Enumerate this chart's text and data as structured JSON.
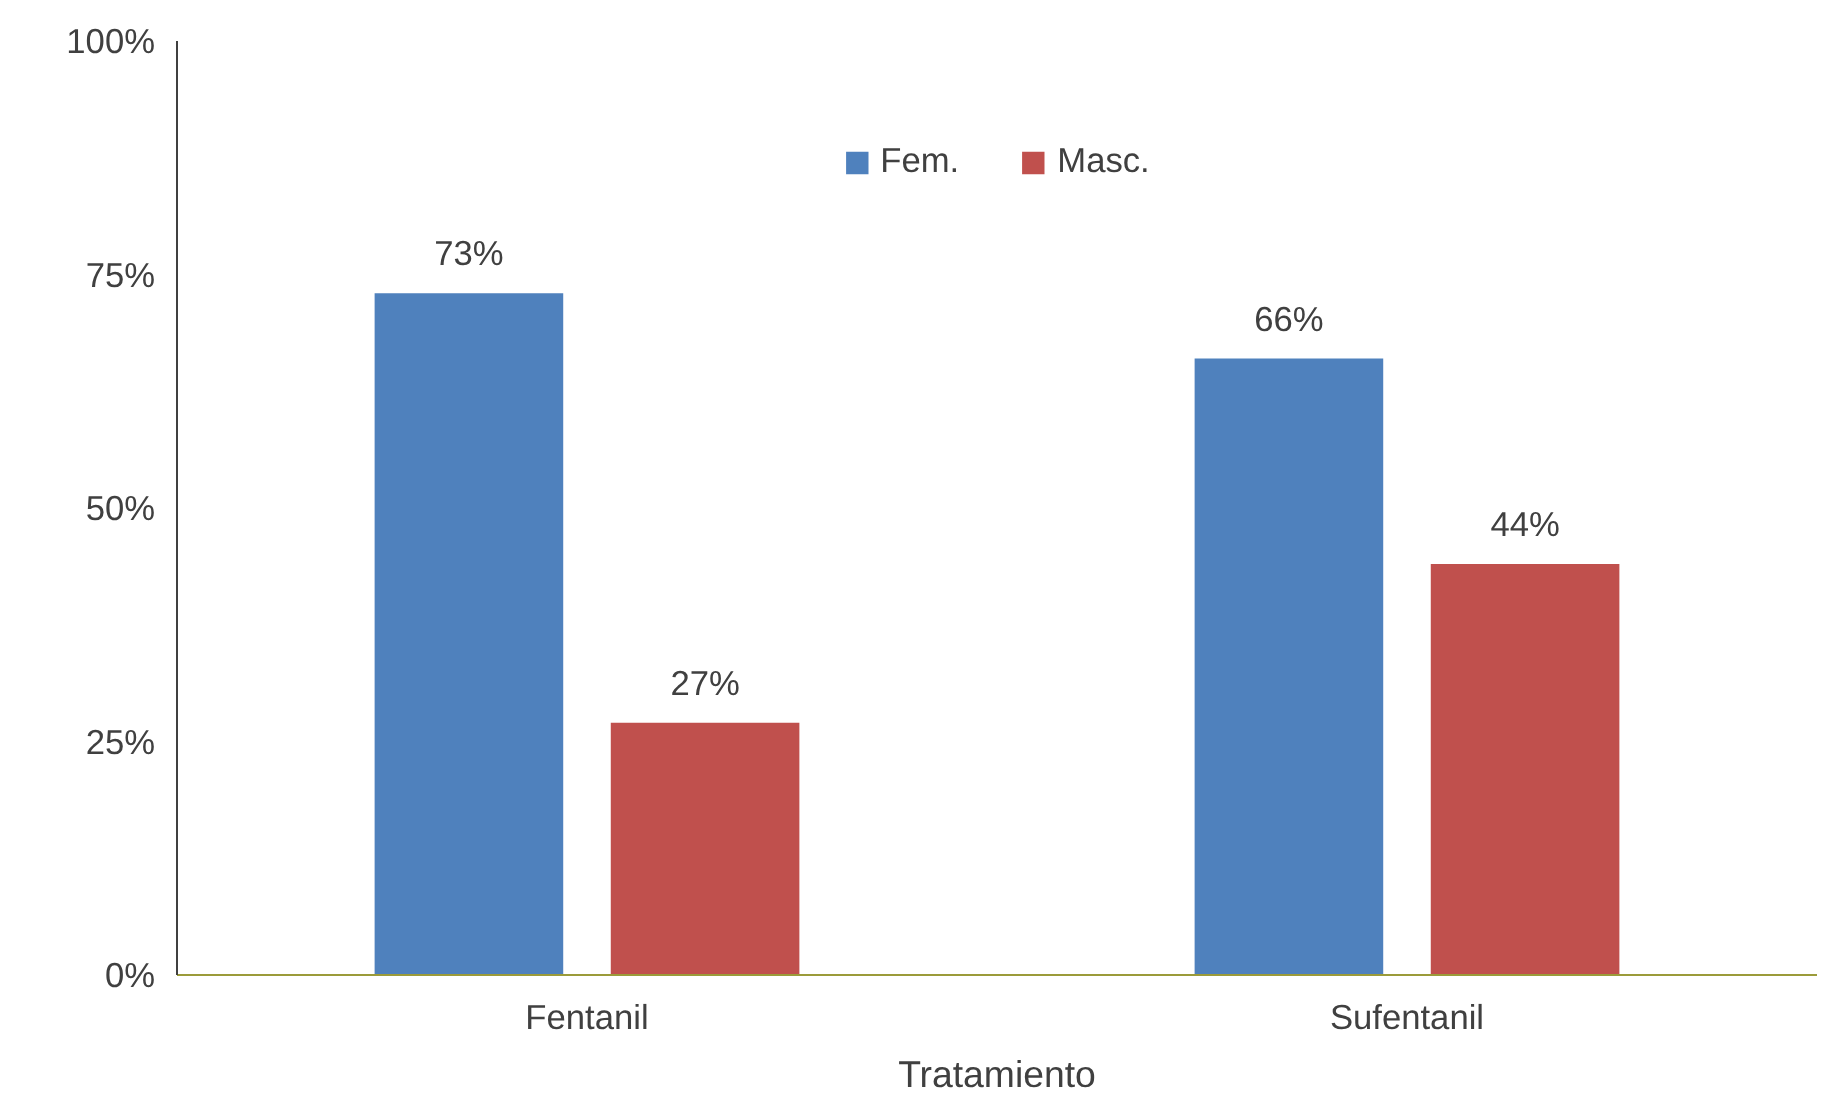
{
  "chart_data": {
    "type": "bar",
    "xlabel": "Tratamiento",
    "categories": [
      "Fentanil",
      "Sufentanil"
    ],
    "series": [
      {
        "name": "Fem.",
        "color": "#4f81bd",
        "values": [
          73,
          66
        ],
        "value_labels": [
          "73%",
          "66%"
        ]
      },
      {
        "name": "Masc.",
        "color": "#c0504d",
        "values": [
          27,
          44
        ],
        "value_labels": [
          "27%",
          "44%"
        ]
      }
    ],
    "ylim": [
      0,
      100
    ],
    "yticks": [
      {
        "value": 0,
        "label": "0%"
      },
      {
        "value": 25,
        "label": "25%"
      },
      {
        "value": 50,
        "label": "50%"
      },
      {
        "value": 75,
        "label": "75%"
      },
      {
        "value": 100,
        "label": "100%"
      }
    ],
    "grid": false,
    "legend": "top"
  }
}
